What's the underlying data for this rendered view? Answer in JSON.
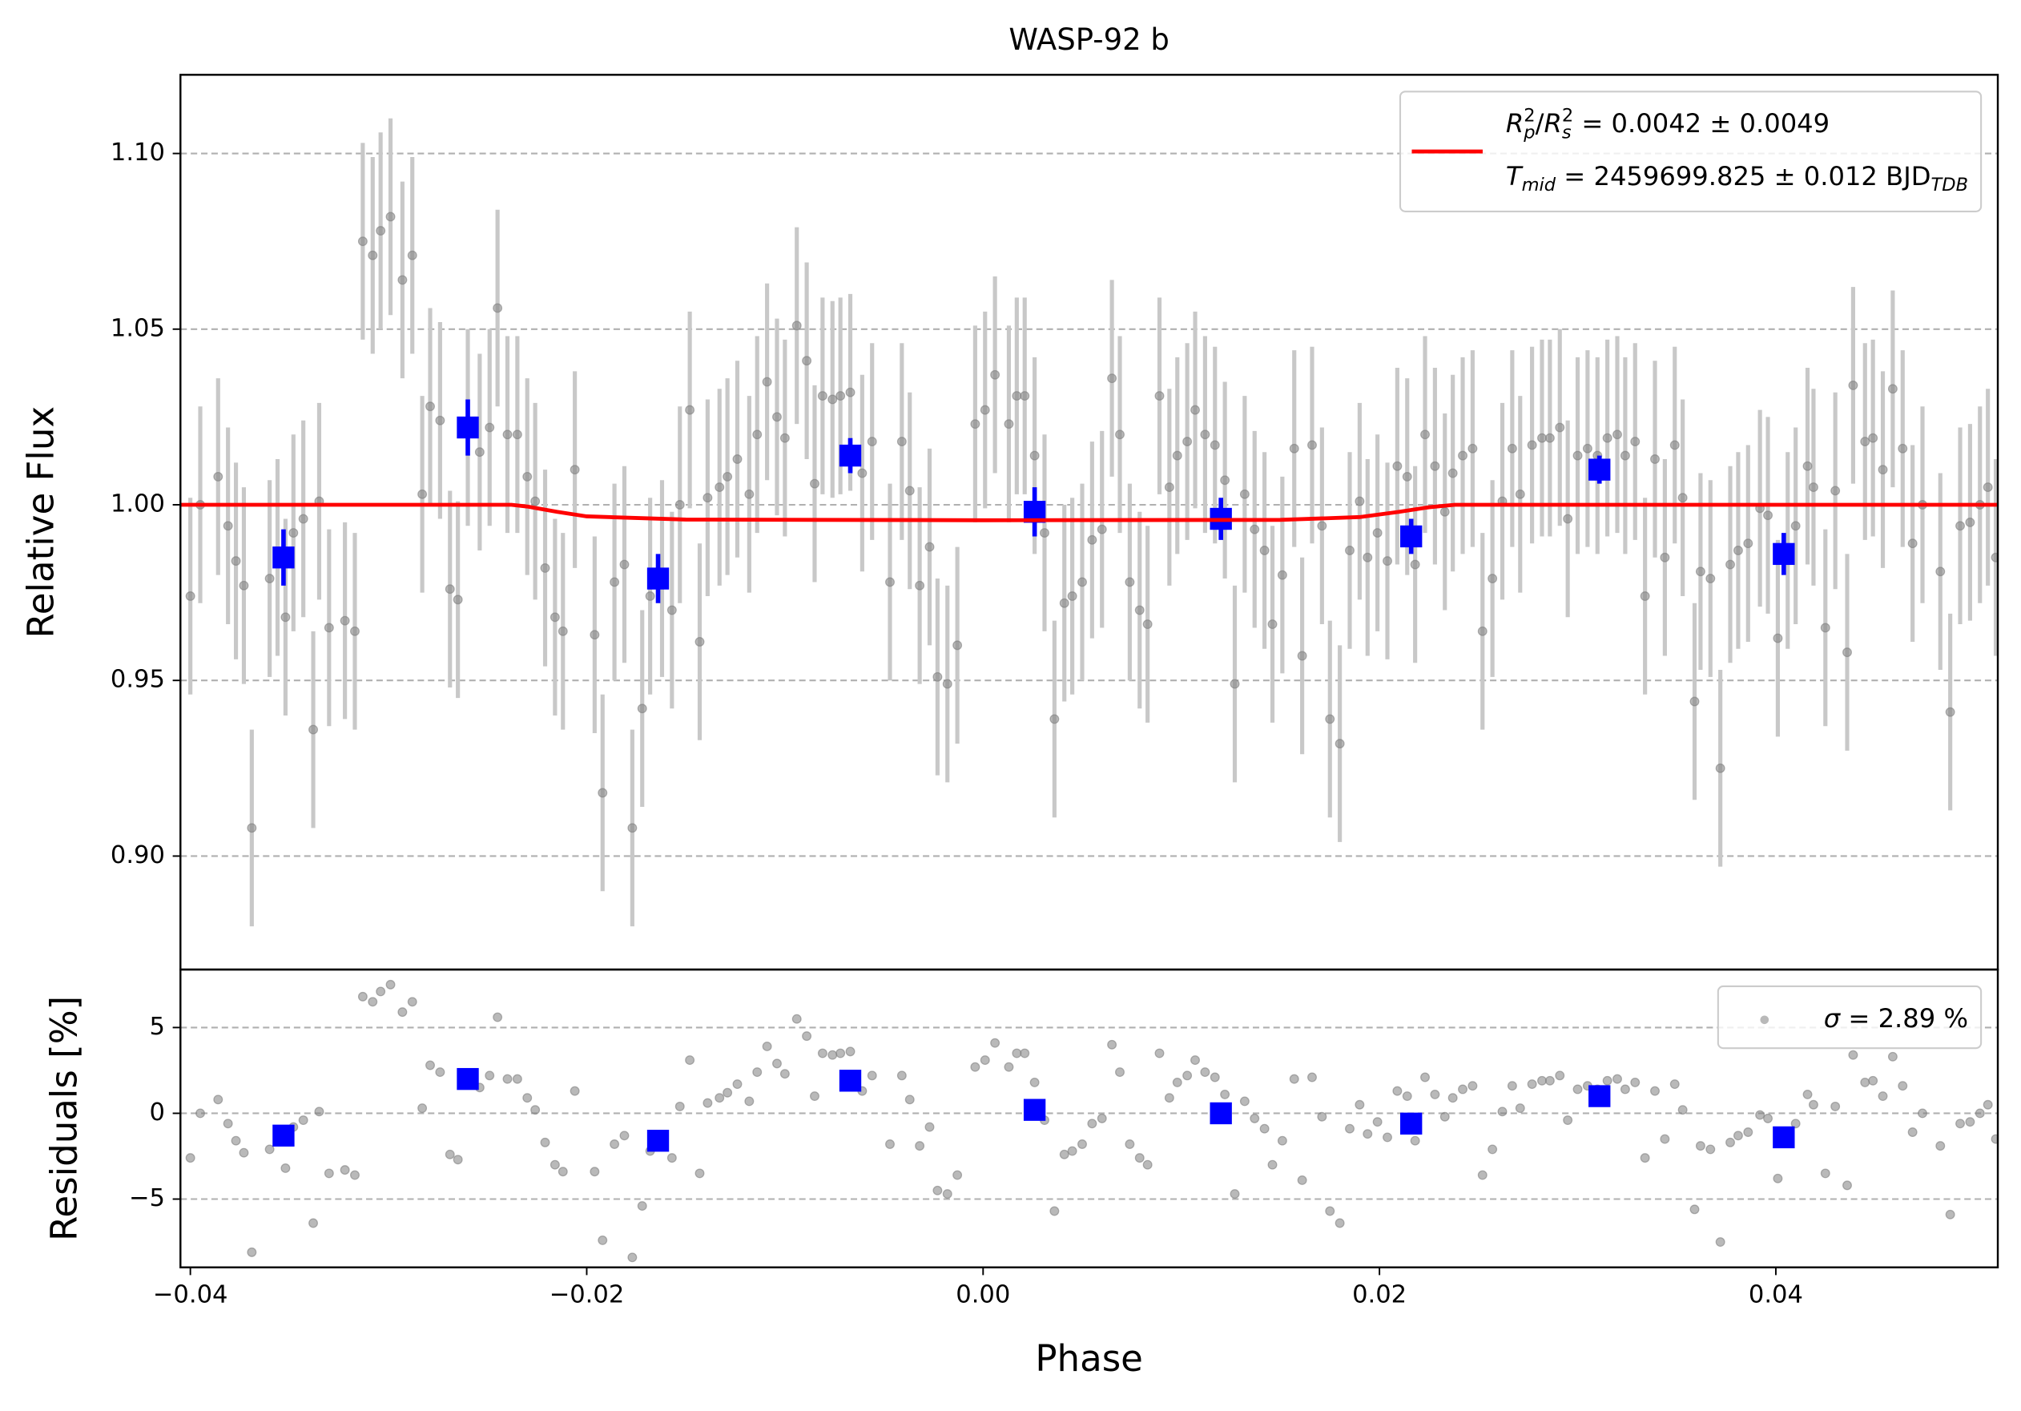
{
  "chart_data": [
    {
      "type": "errorbar",
      "title": "WASP-92 b",
      "y_label": "Relative Flux",
      "xlim": [
        -0.0405,
        0.0512
      ],
      "ylim": [
        0.8677,
        1.1224
      ],
      "yticks": [
        {
          "value": 1.1,
          "label": "1.10"
        },
        1.05,
        {
          "value": 1.0,
          "label": "1.00"
        },
        0.95,
        {
          "value": 0.9,
          "label": "0.90"
        }
      ],
      "grid": true,
      "legend": "upper right",
      "series": [
        {
          "kind": "points",
          "color": "#808080",
          "error_color": "#c8c8c8",
          "yerr": 0.028,
          "x": [
            -0.04,
            -0.0395,
            -0.0386,
            -0.0381,
            -0.0377,
            -0.0373,
            -0.0369,
            -0.036,
            -0.0356,
            -0.0352,
            -0.0348,
            -0.0343,
            -0.0338,
            -0.0335,
            -0.033,
            -0.0322,
            -0.0317,
            -0.0313,
            -0.0308,
            -0.0304,
            -0.0299,
            -0.0293,
            -0.0288,
            -0.0283,
            -0.0279,
            -0.0274,
            -0.0269,
            -0.0265,
            -0.026,
            -0.0254,
            -0.0249,
            -0.0245,
            -0.024,
            -0.0235,
            -0.023,
            -0.0226,
            -0.0221,
            -0.0216,
            -0.0212,
            -0.0206,
            -0.0196,
            -0.0192,
            -0.0186,
            -0.0181,
            -0.0177,
            -0.0172,
            -0.0168,
            -0.0162,
            -0.0157,
            -0.0153,
            -0.0148,
            -0.0143,
            -0.0139,
            -0.0133,
            -0.0129,
            -0.0124,
            -0.0118,
            -0.0114,
            -0.0109,
            -0.0104,
            -0.01,
            -0.0094,
            -0.0089,
            -0.0085,
            -0.0081,
            -0.0076,
            -0.0072,
            -0.0067,
            -0.0061,
            -0.0056,
            -0.0047,
            -0.0041,
            -0.0037,
            -0.0032,
            -0.0027,
            -0.0023,
            -0.0018,
            -0.0013,
            -0.0004,
            0.0001,
            0.0006,
            0.0013,
            0.0017,
            0.0021,
            0.0026,
            0.0031,
            0.0036,
            0.0041,
            0.0045,
            0.005,
            0.0055,
            0.006,
            0.0065,
            0.0069,
            0.0074,
            0.0079,
            0.0083,
            0.0089,
            0.0094,
            0.0098,
            0.0103,
            0.0107,
            0.0112,
            0.0117,
            0.0122,
            0.0127,
            0.0132,
            0.0137,
            0.0142,
            0.0146,
            0.0151,
            0.0157,
            0.0161,
            0.0166,
            0.0171,
            0.0175,
            0.018,
            0.0185,
            0.019,
            0.0194,
            0.0199,
            0.0204,
            0.0209,
            0.0214,
            0.0218,
            0.0223,
            0.0228,
            0.0233,
            0.0237,
            0.0242,
            0.0247,
            0.0252,
            0.0257,
            0.0262,
            0.0267,
            0.0271,
            0.0277,
            0.0282,
            0.0286,
            0.0291,
            0.0295,
            0.03,
            0.0305,
            0.031,
            0.0315,
            0.032,
            0.0324,
            0.0329,
            0.0334,
            0.0339,
            0.0344,
            0.0349,
            0.0353,
            0.0359,
            0.0362,
            0.0367,
            0.0372,
            0.0377,
            0.0381,
            0.0386,
            0.0392,
            0.0396,
            0.0401,
            0.0406,
            0.041,
            0.0416,
            0.0419,
            0.0425,
            0.043,
            0.0436,
            0.0439,
            0.0445,
            0.0449,
            0.0454,
            0.0459,
            0.0464,
            0.0469,
            0.0474,
            0.0483,
            0.0488,
            0.0493,
            0.0498,
            0.0503,
            0.0507,
            0.0511
          ],
          "values": [
            0.974,
            1.0,
            1.008,
            0.994,
            0.984,
            0.977,
            0.908,
            0.979,
            0.985,
            0.968,
            0.992,
            0.996,
            0.936,
            1.001,
            0.965,
            0.967,
            0.964,
            1.075,
            1.071,
            1.078,
            1.082,
            1.064,
            1.071,
            1.003,
            1.028,
            1.024,
            0.976,
            0.973,
            1.022,
            1.015,
            1.022,
            1.056,
            1.02,
            1.02,
            1.008,
            1.001,
            0.982,
            0.968,
            0.964,
            1.01,
            0.963,
            0.918,
            0.978,
            0.983,
            0.908,
            0.942,
            0.974,
            0.979,
            0.97,
            1.0,
            1.027,
            0.961,
            1.002,
            1.005,
            1.008,
            1.013,
            1.003,
            1.02,
            1.035,
            1.025,
            1.019,
            1.051,
            1.041,
            1.006,
            1.031,
            1.03,
            1.031,
            1.032,
            1.009,
            1.018,
            0.978,
            1.018,
            1.004,
            0.977,
            0.988,
            0.951,
            0.949,
            0.96,
            1.023,
            1.027,
            1.037,
            1.023,
            1.031,
            1.031,
            1.014,
            0.992,
            0.939,
            0.972,
            0.974,
            0.978,
            0.99,
            0.993,
            1.036,
            1.02,
            0.978,
            0.97,
            0.966,
            1.031,
            1.005,
            1.014,
            1.018,
            1.027,
            1.02,
            1.017,
            1.007,
            0.949,
            1.003,
            0.993,
            0.987,
            0.966,
            0.98,
            1.016,
            0.957,
            1.017,
            0.994,
            0.939,
            0.932,
            0.987,
            1.001,
            0.985,
            0.992,
            0.984,
            1.011,
            1.008,
            0.983,
            1.02,
            1.011,
            0.998,
            1.009,
            1.014,
            1.016,
            0.964,
            0.979,
            1.001,
            1.016,
            1.003,
            1.017,
            1.019,
            1.019,
            1.022,
            0.996,
            1.014,
            1.016,
            1.014,
            1.019,
            1.02,
            1.014,
            1.018,
            0.974,
            1.013,
            0.985,
            1.017,
            1.002,
            0.944,
            0.981,
            0.979,
            0.925,
            0.983,
            0.987,
            0.989,
            0.999,
            0.997,
            0.962,
            0.987,
            0.994,
            1.011,
            1.005,
            0.965,
            1.004,
            0.958,
            1.034,
            1.018,
            1.019,
            1.01,
            1.033,
            1.016,
            0.989,
            1.0,
            0.981,
            0.941,
            0.994,
            0.995,
            1.0,
            1.005,
            0.985
          ]
        },
        {
          "kind": "binned",
          "color": "#0000ff",
          "x": [
            -0.0353,
            -0.026,
            -0.0164,
            -0.0067,
            0.0026,
            0.012,
            0.0216,
            0.0311,
            0.0404
          ],
          "values": [
            0.985,
            1.022,
            0.979,
            1.014,
            0.998,
            0.996,
            0.991,
            1.01,
            0.986
          ],
          "yerr": [
            0.008,
            0.008,
            0.007,
            0.005,
            0.007,
            0.006,
            0.005,
            0.004,
            0.006
          ]
        },
        {
          "kind": "line",
          "color": "#ff0000",
          "label_lines": [
            [
              {
                "text": "R",
                "style": "italic"
              },
              {
                "text": "p",
                "style": "sub"
              },
              {
                "text": "2",
                "style": "sup"
              },
              {
                "text": "/"
              },
              {
                "text": "R",
                "style": "italic"
              },
              {
                "text": "s",
                "style": "sub"
              },
              {
                "text": "2",
                "style": "sup"
              },
              {
                "text": " = 0.0042 ± 0.0049"
              }
            ],
            [
              {
                "text": "T",
                "style": "italic"
              },
              {
                "text": "mid",
                "style": "sub"
              },
              {
                "text": " = 2459699.825 ± 0.012 BJD"
              },
              {
                "text": "TDB",
                "style": "sub"
              }
            ]
          ],
          "x": [
            -0.0405,
            -0.0238,
            -0.023,
            -0.0215,
            -0.02,
            -0.015,
            0.0,
            0.015,
            0.019,
            0.021,
            0.0225,
            0.0238,
            0.0512
          ],
          "values": [
            1.0,
            1.0,
            0.9995,
            0.998,
            0.9967,
            0.9958,
            0.9956,
            0.9957,
            0.9965,
            0.998,
            0.9993,
            1.0,
            1.0
          ]
        }
      ]
    },
    {
      "type": "scatter",
      "x_label": "Phase",
      "y_label": "Residuals [%]",
      "xlim": [
        -0.0405,
        0.0512
      ],
      "ylim": [
        -8.98,
        8.38
      ],
      "xticks": [
        {
          "value": -0.04,
          "label": "−0.04"
        },
        {
          "value": -0.02,
          "label": "−0.02"
        },
        {
          "value": 0.0,
          "label": "0.00"
        },
        0.02,
        0.04
      ],
      "yticks": [
        5,
        0,
        {
          "value": -5,
          "label": "−5"
        }
      ],
      "grid": true,
      "legend": "upper right",
      "series": [
        {
          "kind": "points",
          "color": "#808080",
          "label_parts": [
            {
              "text": "σ",
              "style": "italic"
            },
            {
              "text": " = 2.89 %"
            }
          ],
          "x": [
            -0.04,
            -0.0395,
            -0.0386,
            -0.0381,
            -0.0377,
            -0.0373,
            -0.0369,
            -0.036,
            -0.0356,
            -0.0352,
            -0.0348,
            -0.0343,
            -0.0338,
            -0.0335,
            -0.033,
            -0.0322,
            -0.0317,
            -0.0313,
            -0.0308,
            -0.0304,
            -0.0299,
            -0.0293,
            -0.0288,
            -0.0283,
            -0.0279,
            -0.0274,
            -0.0269,
            -0.0265,
            -0.026,
            -0.0254,
            -0.0249,
            -0.0245,
            -0.024,
            -0.0235,
            -0.023,
            -0.0226,
            -0.0221,
            -0.0216,
            -0.0212,
            -0.0206,
            -0.0196,
            -0.0192,
            -0.0186,
            -0.0181,
            -0.0177,
            -0.0172,
            -0.0168,
            -0.0162,
            -0.0157,
            -0.0153,
            -0.0148,
            -0.0143,
            -0.0139,
            -0.0133,
            -0.0129,
            -0.0124,
            -0.0118,
            -0.0114,
            -0.0109,
            -0.0104,
            -0.01,
            -0.0094,
            -0.0089,
            -0.0085,
            -0.0081,
            -0.0076,
            -0.0072,
            -0.0067,
            -0.0061,
            -0.0056,
            -0.0047,
            -0.0041,
            -0.0037,
            -0.0032,
            -0.0027,
            -0.0023,
            -0.0018,
            -0.0013,
            -0.0004,
            0.0001,
            0.0006,
            0.0013,
            0.0017,
            0.0021,
            0.0026,
            0.0031,
            0.0036,
            0.0041,
            0.0045,
            0.005,
            0.0055,
            0.006,
            0.0065,
            0.0069,
            0.0074,
            0.0079,
            0.0083,
            0.0089,
            0.0094,
            0.0098,
            0.0103,
            0.0107,
            0.0112,
            0.0117,
            0.0122,
            0.0127,
            0.0132,
            0.0137,
            0.0142,
            0.0146,
            0.0151,
            0.0157,
            0.0161,
            0.0166,
            0.0171,
            0.0175,
            0.018,
            0.0185,
            0.019,
            0.0194,
            0.0199,
            0.0204,
            0.0209,
            0.0214,
            0.0218,
            0.0223,
            0.0228,
            0.0233,
            0.0237,
            0.0242,
            0.0247,
            0.0252,
            0.0257,
            0.0262,
            0.0267,
            0.0271,
            0.0277,
            0.0282,
            0.0286,
            0.0291,
            0.0295,
            0.03,
            0.0305,
            0.031,
            0.0315,
            0.032,
            0.0324,
            0.0329,
            0.0334,
            0.0339,
            0.0344,
            0.0349,
            0.0353,
            0.0359,
            0.0362,
            0.0367,
            0.0372,
            0.0377,
            0.0381,
            0.0386,
            0.0392,
            0.0396,
            0.0401,
            0.0406,
            0.041,
            0.0416,
            0.0419,
            0.0425,
            0.043,
            0.0436,
            0.0439,
            0.0445,
            0.0449,
            0.0454,
            0.0459,
            0.0464,
            0.0469,
            0.0474,
            0.0483,
            0.0488,
            0.0493,
            0.0498,
            0.0503,
            0.0507,
            0.0511
          ],
          "values": [
            -2.6,
            0.0,
            0.8,
            -0.6,
            -1.6,
            -2.3,
            -8.1,
            -2.1,
            -1.5,
            -3.2,
            -0.8,
            -0.4,
            -6.4,
            0.1,
            -3.5,
            -3.3,
            -3.6,
            6.8,
            6.5,
            7.1,
            7.5,
            5.9,
            6.5,
            0.3,
            2.8,
            2.4,
            -2.4,
            -2.7,
            2.2,
            1.5,
            2.2,
            5.6,
            2.0,
            2.0,
            0.9,
            0.2,
            -1.7,
            -3.0,
            -3.4,
            1.3,
            -3.4,
            -7.4,
            -1.8,
            -1.3,
            -8.4,
            -5.4,
            -2.2,
            -1.7,
            -2.6,
            0.4,
            3.1,
            -3.5,
            0.6,
            0.9,
            1.2,
            1.7,
            0.7,
            2.4,
            3.9,
            2.9,
            2.3,
            5.5,
            4.5,
            1.0,
            3.5,
            3.4,
            3.5,
            3.6,
            1.3,
            2.2,
            -1.8,
            2.2,
            0.8,
            -1.9,
            -0.8,
            -4.5,
            -4.7,
            -3.6,
            2.7,
            3.1,
            4.1,
            2.7,
            3.5,
            3.5,
            1.8,
            -0.4,
            -5.7,
            -2.4,
            -2.2,
            -1.8,
            -0.6,
            -0.3,
            4.0,
            2.4,
            -1.8,
            -2.6,
            -3.0,
            3.5,
            0.9,
            1.8,
            2.2,
            3.1,
            2.4,
            2.1,
            1.1,
            -4.7,
            0.7,
            -0.3,
            -0.9,
            -3.0,
            -1.6,
            2.0,
            -3.9,
            2.1,
            -0.2,
            -5.7,
            -6.4,
            -0.9,
            0.5,
            -1.2,
            -0.5,
            -1.4,
            1.3,
            1.0,
            -1.6,
            2.1,
            1.1,
            -0.2,
            0.9,
            1.4,
            1.6,
            -3.6,
            -2.1,
            0.1,
            1.6,
            0.3,
            1.7,
            1.9,
            1.9,
            2.2,
            -0.4,
            1.4,
            1.6,
            1.4,
            1.9,
            2.0,
            1.4,
            1.8,
            -2.6,
            1.3,
            -1.5,
            1.7,
            0.2,
            -5.6,
            -1.9,
            -2.1,
            -7.5,
            -1.7,
            -1.3,
            -1.1,
            -0.1,
            -0.3,
            -3.8,
            -1.3,
            -0.6,
            1.1,
            0.5,
            -3.5,
            0.4,
            -4.2,
            3.4,
            1.8,
            1.9,
            1.0,
            3.3,
            1.6,
            -1.1,
            0.0,
            -1.9,
            -5.9,
            -0.6,
            -0.5,
            0.0,
            0.5,
            -1.5
          ]
        },
        {
          "kind": "binned",
          "color": "#0000ff",
          "x": [
            -0.0353,
            -0.026,
            -0.0164,
            -0.0067,
            0.0026,
            0.012,
            0.0216,
            0.0311,
            0.0404
          ],
          "values": [
            -1.3,
            2.0,
            -1.6,
            1.9,
            0.2,
            0.0,
            -0.6,
            1.0,
            -1.4
          ]
        }
      ]
    }
  ]
}
